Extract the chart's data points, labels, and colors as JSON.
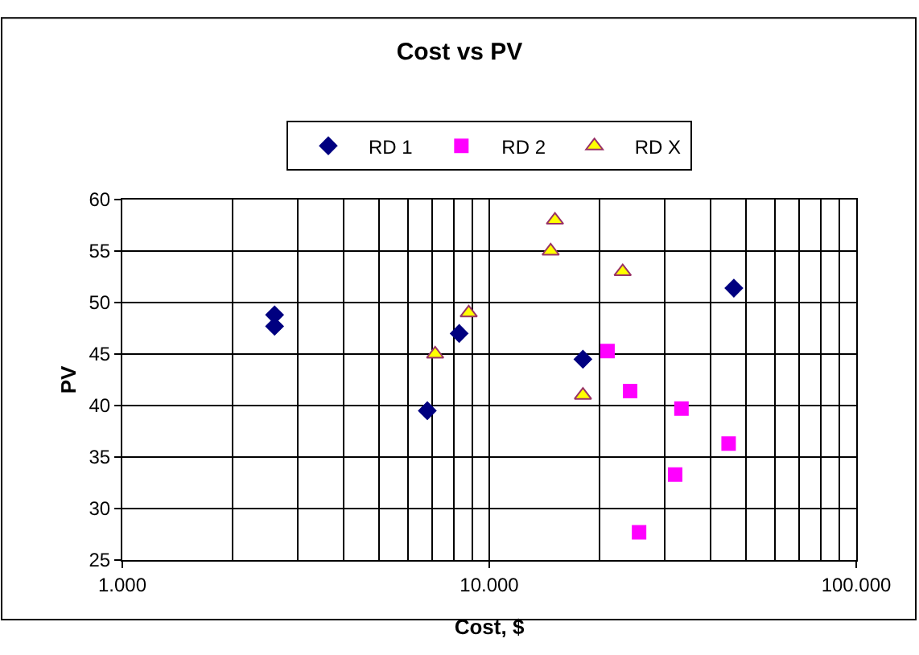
{
  "chart_data": {
    "type": "scatter",
    "title": "Cost vs PV",
    "xlabel": "Cost, $",
    "ylabel": "PV",
    "log": "x",
    "grid": true,
    "legend": "top",
    "xlim": [
      1000,
      100000
    ],
    "xticks": [
      {
        "value": 1000,
        "label": "1.000"
      },
      {
        "value": 10000,
        "label": "10.000"
      },
      {
        "value": 100000,
        "label": "100.000"
      }
    ],
    "ylim": [
      25,
      60
    ],
    "yticks": [
      25,
      30,
      35,
      40,
      45,
      50,
      55,
      60
    ],
    "series": [
      {
        "name": "RD 1",
        "color": "#000080",
        "marker": "diamond",
        "x": [
          2600,
          2600,
          6780,
          8280,
          18000,
          46400
        ],
        "values": [
          48.8,
          47.7,
          39.5,
          47,
          44.5,
          51.4
        ]
      },
      {
        "name": "RD 2",
        "color": "#ff00ff",
        "marker": "square",
        "x": [
          21000,
          24200,
          33400,
          32100,
          25600,
          44900
        ],
        "values": [
          45.3,
          41.4,
          39.7,
          33.3,
          27.7,
          36.3
        ]
      },
      {
        "name": "RD X",
        "color": "#ffff00",
        "marker": "triangle",
        "x": [
          7120,
          8790,
          14700,
          15100,
          18000,
          23100
        ],
        "values": [
          45,
          49,
          55,
          58,
          41,
          53
        ]
      }
    ]
  }
}
